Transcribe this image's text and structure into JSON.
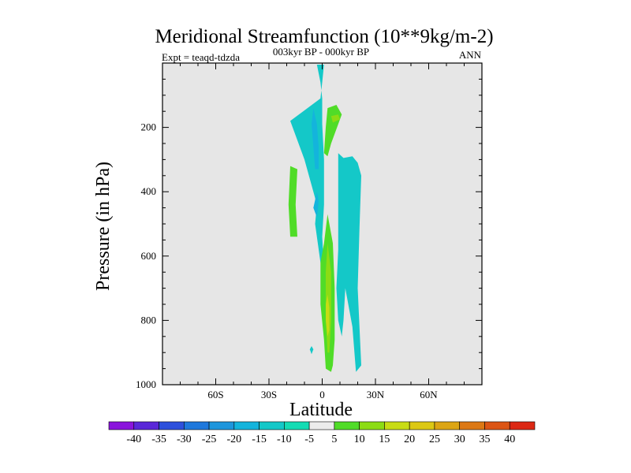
{
  "chart_data": {
    "type": "heatmap",
    "title": "Meridional Streamfunction (10**9kg/m-2)",
    "subtitle_left": "Expt = teaqd-tdzda",
    "subtitle_center": "003kyr BP - 000kyr BP",
    "subtitle_right": "ANN",
    "xlabel": "Latitude",
    "ylabel": "Pressure (in hPa)",
    "xlim": [
      -90,
      90
    ],
    "ylim": [
      1000,
      0
    ],
    "x_ticks": [
      {
        "value": -60,
        "label": "60S"
      },
      {
        "value": -30,
        "label": "30S"
      },
      {
        "value": 0,
        "label": "0"
      },
      {
        "value": 30,
        "label": "30N"
      },
      {
        "value": 60,
        "label": "60N"
      }
    ],
    "y_ticks": [
      {
        "value": 200,
        "label": "200"
      },
      {
        "value": 400,
        "label": "400"
      },
      {
        "value": 600,
        "label": "600"
      },
      {
        "value": 800,
        "label": "800"
      },
      {
        "value": 1000,
        "label": "1000"
      }
    ],
    "background_color": "#e6e6e6",
    "colorbar": {
      "labels": [
        "-40",
        "-35",
        "-30",
        "-25",
        "-20",
        "-15",
        "-10",
        "-5",
        "5",
        "10",
        "15",
        "20",
        "25",
        "30",
        "35",
        "40"
      ],
      "colors": [
        "#8a14dc",
        "#5a28d8",
        "#2d50dc",
        "#1e78dc",
        "#1e96dc",
        "#14b4dc",
        "#14c8c8",
        "#14dcb4",
        "#ececec",
        "#50dc28",
        "#8cdc14",
        "#c8dc14",
        "#dcc814",
        "#dca514",
        "#dc7814",
        "#dc5514",
        "#dc2814"
      ]
    },
    "features": [
      {
        "name": "south-negative-cell",
        "band": "-10",
        "points": [
          [
            -3,
            5
          ],
          [
            1,
            5
          ],
          [
            0,
            60
          ],
          [
            -1,
            110
          ],
          [
            -18,
            180
          ],
          [
            -10,
            300
          ],
          [
            -3,
            440
          ],
          [
            -4,
            500
          ],
          [
            -1,
            620
          ],
          [
            1,
            640
          ],
          [
            0,
            540
          ],
          [
            1,
            440
          ],
          [
            1,
            300
          ],
          [
            0,
            190
          ],
          [
            0,
            110
          ],
          [
            -1,
            60
          ]
        ]
      },
      {
        "name": "south-negative-core",
        "band": "-15",
        "points": [
          [
            -5,
            140
          ],
          [
            -3,
            190
          ],
          [
            -2,
            260
          ],
          [
            -2,
            330
          ],
          [
            -4,
            330
          ],
          [
            -5,
            260
          ],
          [
            -6,
            190
          ]
        ]
      },
      {
        "name": "south-negative-core-lower",
        "band": "-15",
        "points": [
          [
            -3,
            400
          ],
          [
            -2,
            430
          ],
          [
            -3,
            480
          ],
          [
            -5,
            450
          ]
        ]
      },
      {
        "name": "south-positive-flank",
        "band": "5",
        "points": [
          [
            -18,
            320
          ],
          [
            -14,
            330
          ],
          [
            -15,
            440
          ],
          [
            -14,
            540
          ],
          [
            -18,
            540
          ],
          [
            -19,
            440
          ]
        ]
      },
      {
        "name": "north-positive-upper",
        "band": "5",
        "points": [
          [
            3,
            140
          ],
          [
            8,
            130
          ],
          [
            11,
            160
          ],
          [
            9,
            190
          ],
          [
            5,
            250
          ],
          [
            3,
            290
          ],
          [
            1,
            280
          ],
          [
            2,
            200
          ]
        ]
      },
      {
        "name": "north-positive-upper-core",
        "band": "10",
        "points": [
          [
            5,
            165
          ],
          [
            9,
            160
          ],
          [
            10,
            175
          ],
          [
            6,
            185
          ]
        ]
      },
      {
        "name": "north-negative-cell",
        "band": "-10",
        "points": [
          [
            9,
            280
          ],
          [
            12,
            295
          ],
          [
            17,
            290
          ],
          [
            20,
            310
          ],
          [
            22,
            350
          ],
          [
            21,
            510
          ],
          [
            20,
            700
          ],
          [
            22,
            940
          ],
          [
            19,
            960
          ],
          [
            17,
            820
          ],
          [
            13,
            700
          ],
          [
            12,
            800
          ],
          [
            11,
            850
          ],
          [
            9,
            800
          ],
          [
            8,
            700
          ],
          [
            9,
            580
          ],
          [
            9,
            450
          ],
          [
            9,
            340
          ]
        ]
      },
      {
        "name": "equatorial-positive-lower",
        "band": "5",
        "points": [
          [
            3,
            470
          ],
          [
            6,
            560
          ],
          [
            7,
            700
          ],
          [
            7,
            860
          ],
          [
            6,
            940
          ],
          [
            5,
            960
          ],
          [
            2,
            950
          ],
          [
            1,
            860
          ],
          [
            -1,
            750
          ],
          [
            -1,
            620
          ],
          [
            1,
            560
          ]
        ]
      },
      {
        "name": "equatorial-positive-lower-core",
        "band": "10",
        "points": [
          [
            3,
            560
          ],
          [
            5,
            650
          ],
          [
            5,
            800
          ],
          [
            4,
            900
          ],
          [
            3,
            900
          ],
          [
            2,
            800
          ],
          [
            2,
            650
          ]
        ]
      },
      {
        "name": "equatorial-positive-lower-peak",
        "band": "15",
        "points": [
          [
            3,
            720
          ],
          [
            4,
            760
          ],
          [
            4,
            830
          ],
          [
            3,
            850
          ],
          [
            2,
            800
          ],
          [
            2,
            750
          ]
        ]
      },
      {
        "name": "isolated-spot",
        "band": "-10",
        "points": [
          [
            -6,
            880
          ],
          [
            -5,
            890
          ],
          [
            -6,
            905
          ],
          [
            -7,
            890
          ]
        ]
      }
    ]
  }
}
